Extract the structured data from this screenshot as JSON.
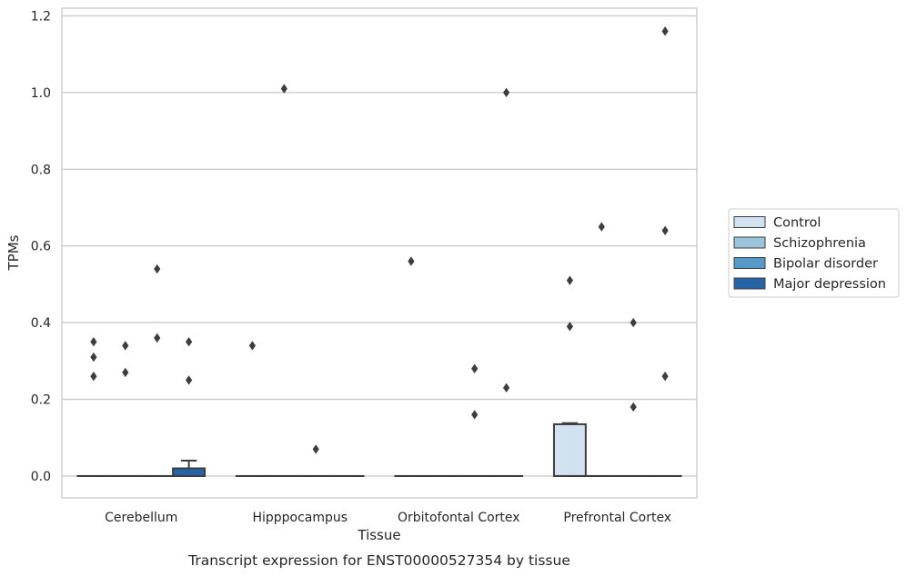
{
  "chart_data": {
    "type": "box",
    "title": "",
    "caption": "Transcript expression for ENST00000527354 by tissue",
    "xlabel": "Tissue",
    "ylabel": "TPMs",
    "ylim": [
      -0.057,
      1.22
    ],
    "yticks": [
      0.0,
      0.2,
      0.4,
      0.6,
      0.8,
      1.0,
      1.2
    ],
    "ytick_labels": [
      "0.0",
      "0.2",
      "0.4",
      "0.6",
      "0.8",
      "1.0",
      "1.2"
    ],
    "grid": "horizontal",
    "legend_position": "right",
    "categories": [
      "Cerebellum",
      "Hipppocampus",
      "Orbitofontal Cortex",
      "Prefrontal Cortex"
    ],
    "series": [
      {
        "name": "Control",
        "color": "#d1e1f0",
        "boxes": [
          {
            "q1": 0,
            "median": 0,
            "q3": 0,
            "whisker_low": 0,
            "whisker_high": 0,
            "outliers": [
              0.35,
              0.31,
              0.26
            ]
          },
          {
            "q1": 0,
            "median": 0,
            "q3": 0,
            "whisker_low": 0,
            "whisker_high": 0,
            "outliers": [
              0.34
            ]
          },
          {
            "q1": 0,
            "median": 0,
            "q3": 0,
            "whisker_low": 0,
            "whisker_high": 0,
            "outliers": [
              0.56
            ]
          },
          {
            "q1": 0,
            "median": 0,
            "q3": 0.135,
            "whisker_low": 0,
            "whisker_high": 0.138,
            "outliers": [
              0.51,
              0.39
            ]
          }
        ]
      },
      {
        "name": "Schizophrenia",
        "color": "#9ac3dc",
        "boxes": [
          {
            "q1": 0,
            "median": 0,
            "q3": 0,
            "whisker_low": 0,
            "whisker_high": 0,
            "outliers": [
              0.34,
              0.27
            ]
          },
          {
            "q1": 0,
            "median": 0,
            "q3": 0,
            "whisker_low": 0,
            "whisker_high": 0,
            "outliers": [
              1.01
            ]
          },
          {
            "q1": 0,
            "median": 0,
            "q3": 0,
            "whisker_low": 0,
            "whisker_high": 0,
            "outliers": []
          },
          {
            "q1": 0,
            "median": 0,
            "q3": 0,
            "whisker_low": 0,
            "whisker_high": 0,
            "outliers": [
              0.65
            ]
          }
        ]
      },
      {
        "name": "Bipolar disorder",
        "color": "#5698c8",
        "boxes": [
          {
            "q1": 0,
            "median": 0,
            "q3": 0,
            "whisker_low": 0,
            "whisker_high": 0,
            "outliers": [
              0.54,
              0.36
            ]
          },
          {
            "q1": 0,
            "median": 0,
            "q3": 0,
            "whisker_low": 0,
            "whisker_high": 0,
            "outliers": [
              0.07
            ]
          },
          {
            "q1": 0,
            "median": 0,
            "q3": 0,
            "whisker_low": 0,
            "whisker_high": 0,
            "outliers": [
              0.28,
              0.16
            ]
          },
          {
            "q1": 0,
            "median": 0,
            "q3": 0,
            "whisker_low": 0,
            "whisker_high": 0,
            "outliers": [
              0.4,
              0.18
            ]
          }
        ]
      },
      {
        "name": "Major depression",
        "color": "#2564a6",
        "boxes": [
          {
            "q1": 0,
            "median": 0,
            "q3": 0.02,
            "whisker_low": 0,
            "whisker_high": 0.04,
            "outliers": [
              0.35,
              0.25
            ]
          },
          {
            "q1": 0,
            "median": 0,
            "q3": 0,
            "whisker_low": 0,
            "whisker_high": 0,
            "outliers": []
          },
          {
            "q1": 0,
            "median": 0,
            "q3": 0,
            "whisker_low": 0,
            "whisker_high": 0,
            "outliers": [
              1.0,
              0.23
            ]
          },
          {
            "q1": 0,
            "median": 0,
            "q3": 0,
            "whisker_low": 0,
            "whisker_high": 0,
            "outliers": [
              1.16,
              0.64,
              0.26
            ]
          }
        ]
      }
    ]
  }
}
